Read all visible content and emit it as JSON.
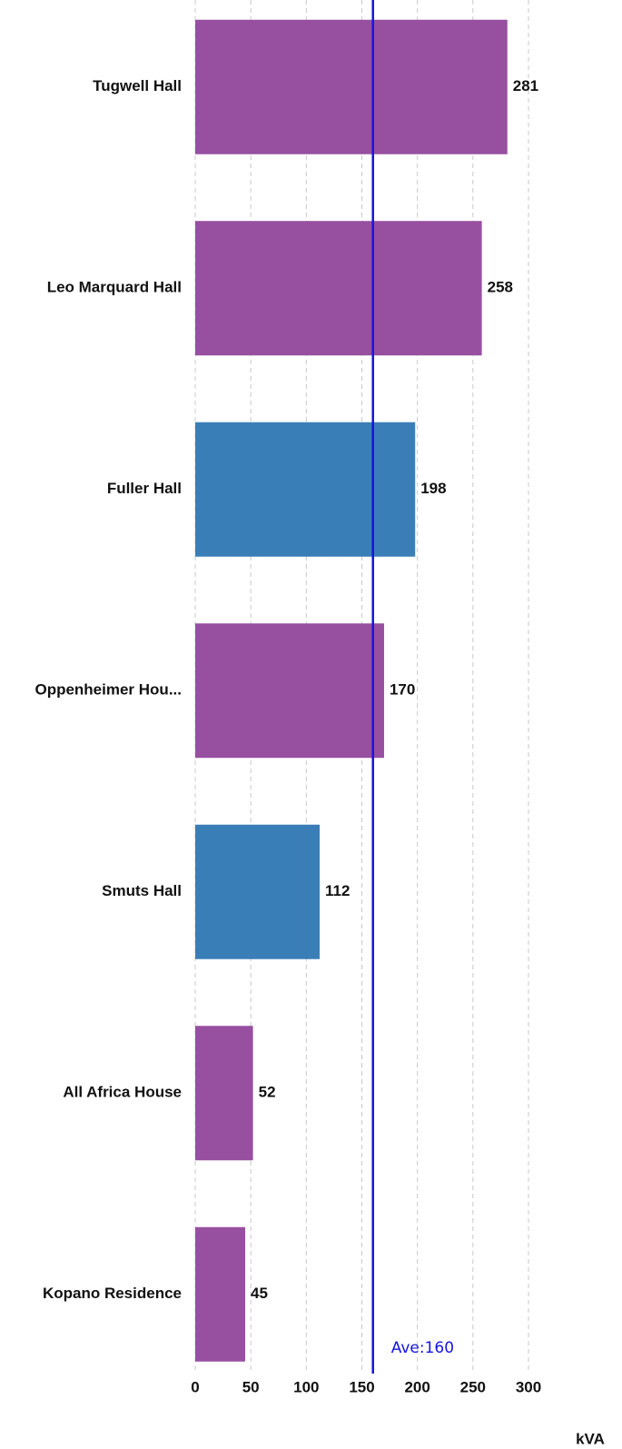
{
  "chart_data": {
    "type": "barh",
    "categories": [
      "Tugwell Hall",
      "Leo Marquard Hall",
      "Fuller Hall",
      "Oppenheimer Hou...",
      "Smuts Hall",
      "All Africa House",
      "Kopano Residence"
    ],
    "values": [
      281,
      258,
      198,
      170,
      112,
      52,
      45
    ],
    "colors": [
      "#974fa0",
      "#974fa0",
      "#3a7eb8",
      "#974fa0",
      "#3a7eb8",
      "#974fa0",
      "#974fa0"
    ],
    "xlim": [
      0,
      300
    ],
    "xticks": [
      0,
      50,
      100,
      150,
      200,
      250,
      300
    ],
    "grid": true,
    "xlabel": "kVA",
    "average": {
      "value": 160,
      "label": "Ave:160",
      "color": "#1515e0"
    }
  }
}
